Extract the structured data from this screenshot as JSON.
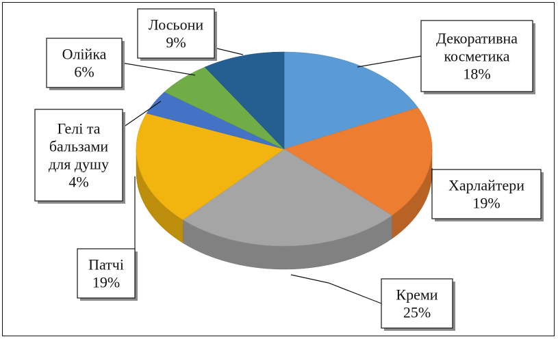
{
  "chart_data": {
    "type": "pie",
    "title": "",
    "style": "3d-pie",
    "legend": "none",
    "slices": [
      {
        "label_lines": [
          "Декоративна",
          "косметика"
        ],
        "value": 18,
        "percent_text": "18%",
        "color": "#5B9BD5"
      },
      {
        "label_lines": [
          "Харлайтери"
        ],
        "value": 19,
        "percent_text": "19%",
        "color": "#ED7D31"
      },
      {
        "label_lines": [
          "Креми"
        ],
        "value": 25,
        "percent_text": "25%",
        "color": "#A5A5A5"
      },
      {
        "label_lines": [
          "Патчі"
        ],
        "value": 19,
        "percent_text": "19%",
        "color": "#F2B50F"
      },
      {
        "label_lines": [
          "Гелі та",
          "бальзами",
          "для душу"
        ],
        "value": 4,
        "percent_text": "4%",
        "color": "#4472C4"
      },
      {
        "label_lines": [
          "Олійка"
        ],
        "value": 6,
        "percent_text": "6%",
        "color": "#70AD47"
      },
      {
        "label_lines": [
          "Лосьони"
        ],
        "value": 9,
        "percent_text": "9%",
        "color": "#255E91"
      }
    ]
  }
}
